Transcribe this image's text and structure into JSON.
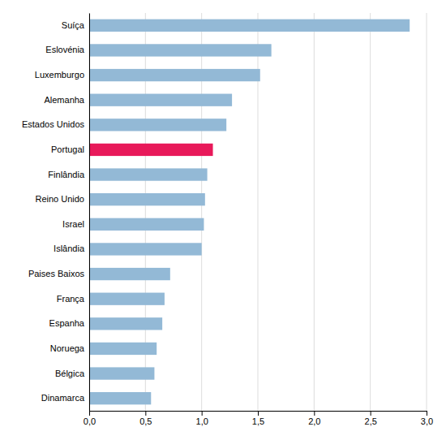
{
  "chart_data": {
    "type": "bar",
    "orientation": "horizontal",
    "categories": [
      "Dinamarca",
      "Bélgica",
      "Noruega",
      "Espanha",
      "França",
      "Paises Baixos",
      "Islândia",
      "Israel",
      "Reino Unido",
      "Finlândia",
      "Portugal",
      "Estados Unidos",
      "Alemanha",
      "Luxemburgo",
      "Eslovénia",
      "Suíça"
    ],
    "values": [
      0.55,
      0.58,
      0.6,
      0.65,
      0.67,
      0.72,
      1.0,
      1.02,
      1.03,
      1.05,
      1.1,
      1.22,
      1.27,
      1.52,
      1.62,
      2.85
    ],
    "colors": [
      "#93B9D6",
      "#93B9D6",
      "#93B9D6",
      "#93B9D6",
      "#93B9D6",
      "#93B9D6",
      "#93B9D6",
      "#93B9D6",
      "#93B9D6",
      "#93B9D6",
      "#E8195A",
      "#93B9D6",
      "#93B9D6",
      "#93B9D6",
      "#93B9D6",
      "#93B9D6"
    ],
    "xlim": [
      0,
      3.0
    ],
    "xticks": [
      {
        "value": 0.0,
        "label": "0,0"
      },
      {
        "value": 0.5,
        "label": "0,5"
      },
      {
        "value": 1.0,
        "label": "1,0"
      },
      {
        "value": 1.5,
        "label": "1,5"
      },
      {
        "value": 2.0,
        "label": "2,0"
      },
      {
        "value": 2.5,
        "label": "2,5"
      },
      {
        "value": 3.0,
        "label": "3,0"
      }
    ],
    "grid": true
  }
}
